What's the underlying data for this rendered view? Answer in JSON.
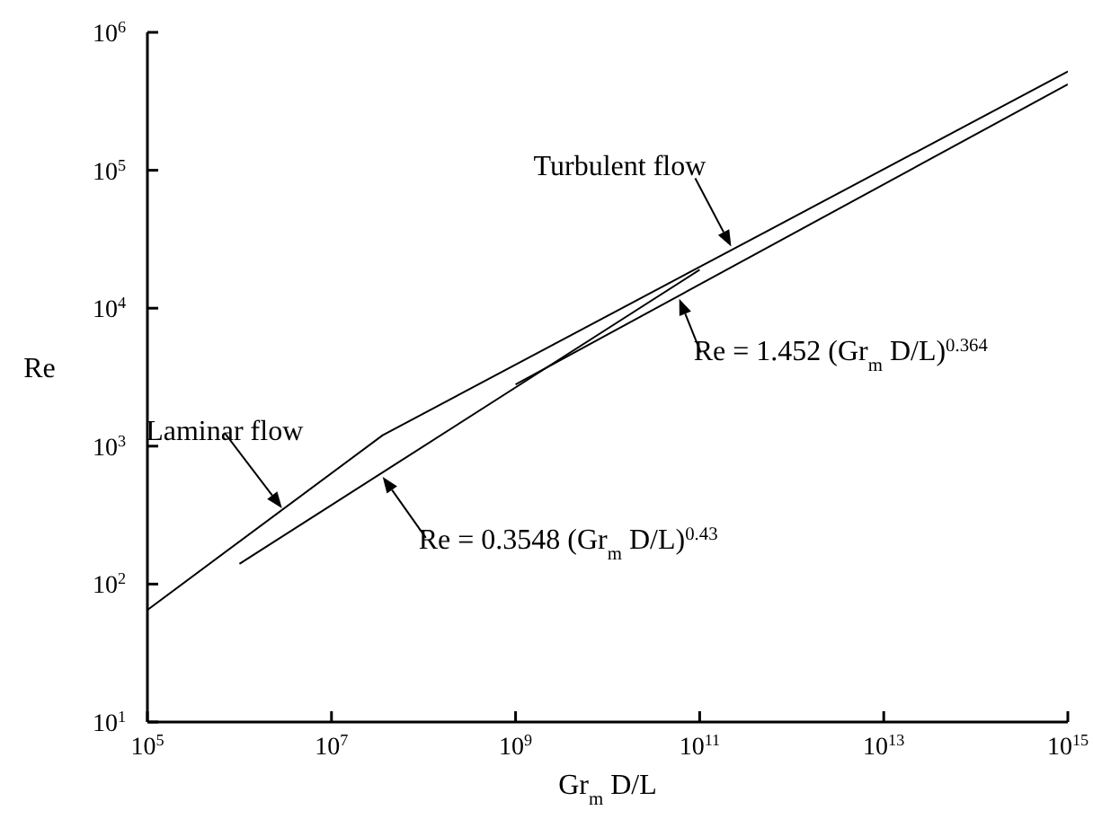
{
  "chart_data": {
    "type": "line",
    "xlabel": "Gr$_{m}$ D/L",
    "ylabel": "Re",
    "log": "xy",
    "marker": "none",
    "line_style": "solid",
    "xlim": [
      100000,
      1000000000000000
    ],
    "ylim": [
      10,
      1000000
    ],
    "xticks": [
      {
        "value": 100000,
        "label": "10$^{5}$"
      },
      {
        "value": 10000000,
        "label": "10$^{7}$"
      },
      {
        "value": 1000000000,
        "label": "10$^{9}$"
      },
      {
        "value": 100000000000,
        "label": "10$^{11}$"
      },
      {
        "value": 10000000000000,
        "label": "10$^{13}$"
      },
      {
        "value": 1000000000000000,
        "label": "10$^{15}$"
      }
    ],
    "yticks": [
      {
        "value": 10,
        "label": "10$^{1}$"
      },
      {
        "value": 100,
        "label": "10$^{2}$"
      },
      {
        "value": 1000,
        "label": "10$^{3}$"
      },
      {
        "value": 10000,
        "label": "10$^{4}$"
      },
      {
        "value": 100000,
        "label": "10$^{5}$"
      },
      {
        "value": 1000000,
        "label": "10$^{6}$"
      }
    ],
    "series": [
      {
        "color": "#000000",
        "x": [
          100000,
          36000000,
          1000000000000000
        ],
        "values": [
          65,
          1200,
          520000
        ]
      },
      {
        "color": "#000000",
        "x": [
          1000000,
          100000000000
        ],
        "values": [
          140,
          19000
        ]
      },
      {
        "color": "#000000",
        "x": [
          1000000000,
          1000000000000000
        ],
        "values": [
          2800,
          420000
        ]
      }
    ],
    "annotations": [
      {
        "text": "Laminar flow",
        "x": 2900000,
        "y": 355
      },
      {
        "text": "Re = 0.3548 (Gr$_{m}$ D/L)$^{0.43}$",
        "x": 36000000,
        "y": 600
      },
      {
        "text": "Turbulent flow",
        "x": 220000000000,
        "y": 28000
      },
      {
        "text": "Re = 1.452 (Gr$_{m}$ D/L)$^{0.364}$",
        "x": 60000000000,
        "y": 11700
      }
    ]
  }
}
